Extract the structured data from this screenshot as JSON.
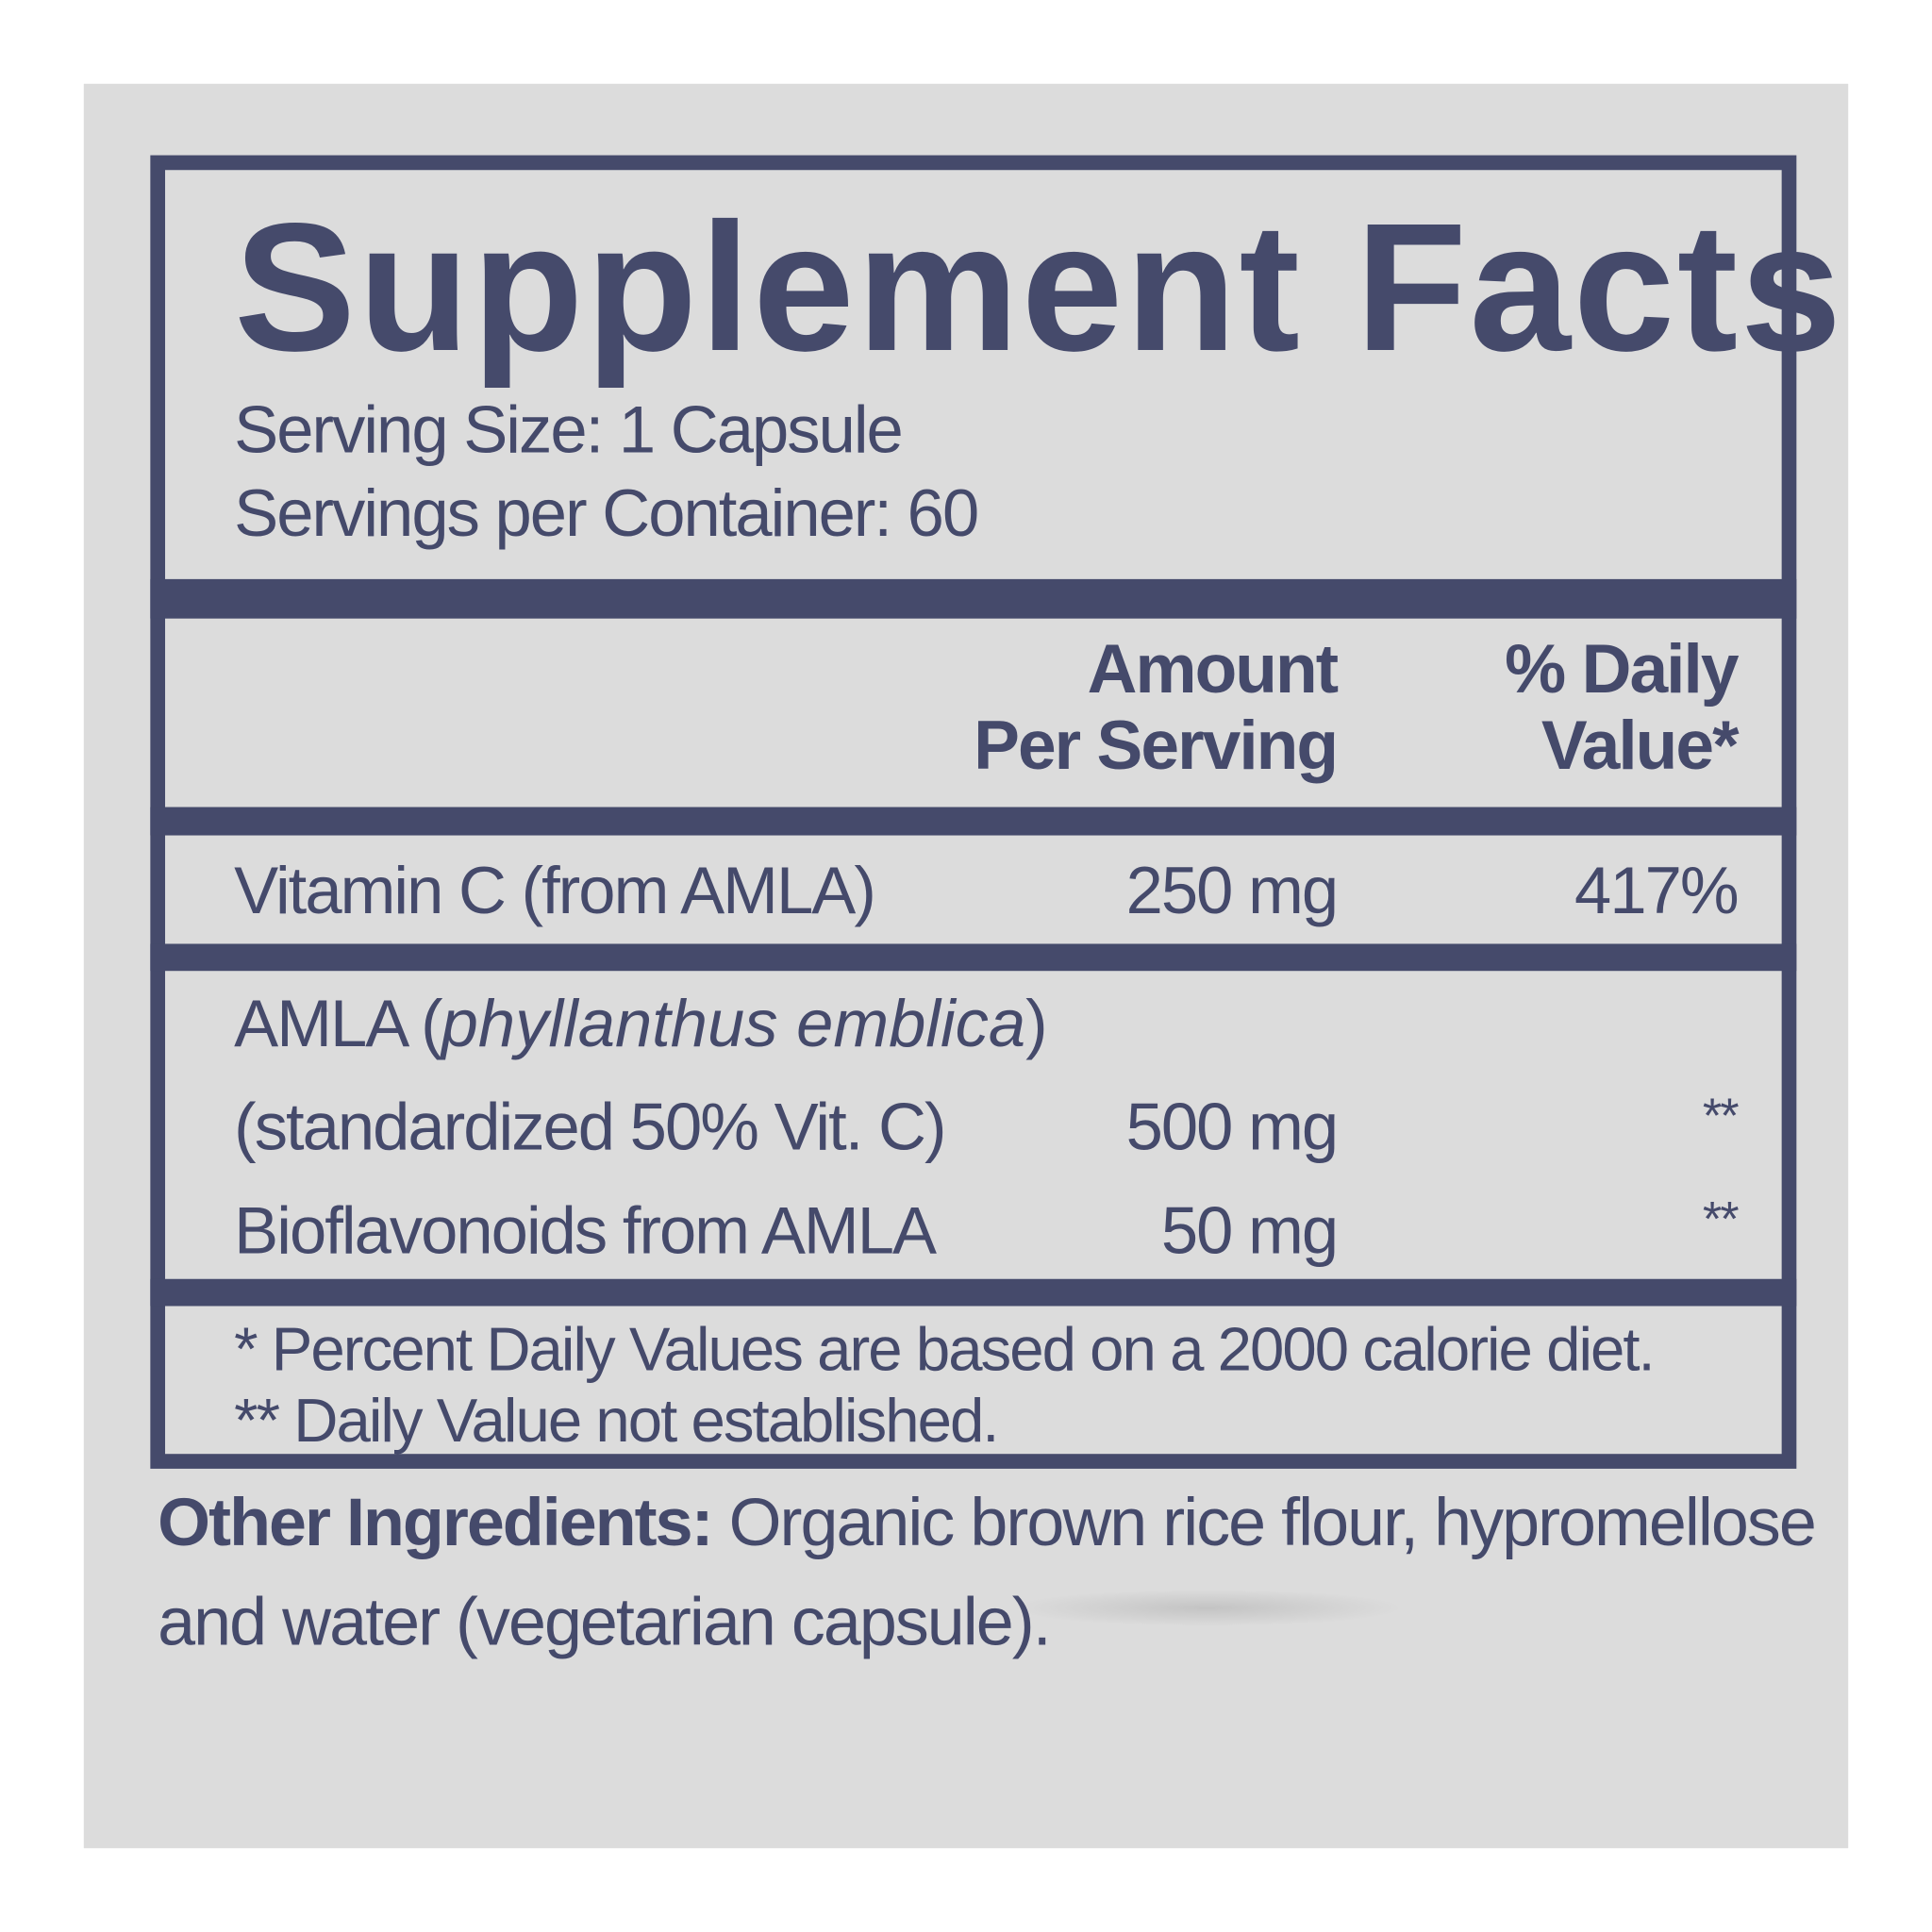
{
  "label": {
    "title": "Supplement Facts",
    "serving_size": "Serving Size: 1 Capsule",
    "servings_per_container": "Servings per Container: 60",
    "header": {
      "amount_line1": "Amount",
      "amount_line2": "Per Serving",
      "dv_line1": "% Daily",
      "dv_line2": "Value*"
    },
    "rows": [
      {
        "name": "Vitamin C (from AMLA)",
        "amount": "250 mg",
        "dv": "417%"
      },
      {
        "name_prefix": "AMLA (",
        "name_italic": "phyllanthus emblica",
        "name_suffix": ")",
        "name_line2": "(standardized 50% Vit. C)",
        "amount": "500 mg",
        "dv": "**"
      },
      {
        "name": "Bioflavonoids from AMLA",
        "amount": "50 mg",
        "dv": "**"
      }
    ],
    "footnotes": [
      "* Percent Daily Values are based on a 2000 calorie diet.",
      "** Daily Value not established."
    ]
  },
  "other_ingredients": {
    "label": "Other Ingredients:",
    "text_line1": " Organic brown rice flour, hypromellose",
    "text_line2": "and water (vegetarian capsule)."
  },
  "colors": {
    "ink": "#454a6b",
    "background": "#dcdcdc"
  }
}
